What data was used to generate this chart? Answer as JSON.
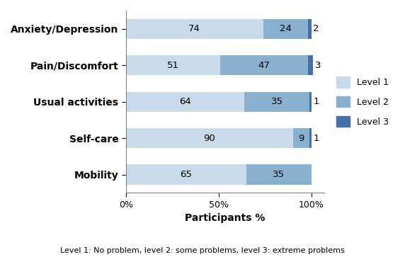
{
  "categories": [
    "Mobility",
    "Self-care",
    "Usual activities",
    "Pain/Discomfort",
    "Anxiety/Depression"
  ],
  "level1": [
    65,
    90,
    64,
    51,
    74
  ],
  "level2": [
    35,
    9,
    35,
    47,
    24
  ],
  "level3": [
    0,
    1,
    1,
    3,
    2
  ],
  "color_level1": "#c9daea",
  "color_level2": "#8ab0d0",
  "color_level3": "#4472a8",
  "xlabel": "Participants %",
  "xticks": [
    0,
    50,
    100
  ],
  "xticklabels": [
    "0%",
    "50%",
    "100%"
  ],
  "legend_labels": [
    "Level 1",
    "Level 2",
    "Level 3"
  ],
  "footnote": "Level 1: No problem, level 2: some problems, level 3: extreme problems",
  "bar_height": 0.55,
  "figsize": [
    5.72,
    3.63
  ],
  "dpi": 100
}
